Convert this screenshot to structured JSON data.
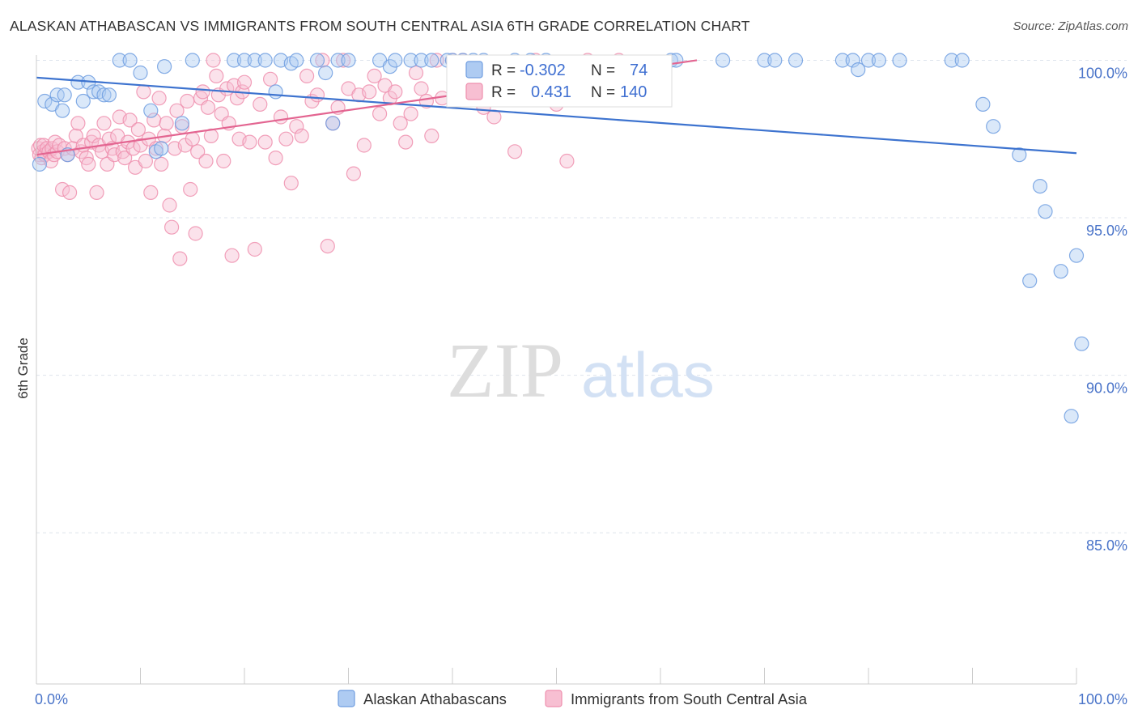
{
  "header": {
    "title": "ALASKAN ATHABASCAN VS IMMIGRANTS FROM SOUTH CENTRAL ASIA 6TH GRADE CORRELATION CHART",
    "source": "Source: ZipAtlas.com"
  },
  "watermark": {
    "zip": "ZIP",
    "atlas": "atlas"
  },
  "colors": {
    "blue": "#6f9de0",
    "blue_fill": "#aecbf2",
    "blue_line": "#3d73cf",
    "pink": "#ee8fae",
    "pink_fill": "#f7bfd2",
    "pink_line": "#e36591",
    "grid": "#dde3ec",
    "tick_label": "#4a74c9"
  },
  "legend": {
    "rows": [
      {
        "r_label": "R = ",
        "r_value": "-0.302",
        "n_label": "N = ",
        "n_value": "74"
      },
      {
        "r_label": "R = ",
        "r_value": "0.431",
        "n_label": "N = ",
        "n_value": "140"
      }
    ]
  },
  "chart_data": {
    "type": "scatter",
    "title": "ALASKAN ATHABASCAN VS IMMIGRANTS FROM SOUTH CENTRAL ASIA 6TH GRADE CORRELATION CHART",
    "xlabel": "",
    "ylabel": "6th Grade",
    "xlim": [
      0,
      100
    ],
    "ylim": [
      80.2,
      100.5
    ],
    "x_tick_labels": [
      "0.0%",
      "100.0%"
    ],
    "y_ticks": [
      100,
      95,
      90,
      85
    ],
    "y_tick_labels": [
      "100.0%",
      "95.0%",
      "90.0%",
      "85.0%"
    ],
    "grid": true,
    "legend_position": "top-center",
    "series": [
      {
        "name": "Alaskan Athabascans",
        "color": "#6f9de0",
        "r": -0.302,
        "n": 74,
        "trend": {
          "x": [
            0,
            100
          ],
          "y": [
            99.45,
            97.05
          ]
        },
        "x": [
          0.3,
          0.8,
          1.5,
          2.0,
          2.5,
          2.7,
          3.0,
          4.0,
          4.5,
          5.0,
          5.5,
          6.0,
          6.5,
          7.0,
          8.0,
          9.0,
          10.0,
          11.0,
          11.5,
          12.0,
          12.3,
          14.0,
          15.0,
          19.0,
          20.0,
          21.0,
          22.0,
          23.0,
          23.5,
          24.5,
          25.0,
          27.0,
          27.8,
          28.5,
          29.0,
          30.0,
          33.0,
          34.0,
          34.5,
          36.0,
          37.0,
          38.0,
          39.5,
          40.0,
          41.0,
          42.0,
          43.0,
          46.0,
          47.5,
          49.0,
          61.0,
          61.5,
          66.0,
          70.0,
          71.0,
          73.0,
          77.5,
          78.5,
          79.0,
          80.0,
          81.0,
          83.0,
          88.0,
          89.0,
          91.0,
          92.0,
          94.5,
          95.5,
          96.5,
          97.0,
          98.5,
          99.5,
          100.0,
          100.5
        ],
        "y": [
          96.7,
          98.7,
          98.6,
          98.9,
          98.4,
          98.9,
          97.0,
          99.3,
          98.7,
          99.3,
          99.0,
          99.0,
          98.9,
          98.9,
          100.0,
          100.0,
          99.6,
          98.4,
          97.1,
          97.2,
          99.8,
          98.0,
          100.0,
          100.0,
          100.0,
          100.0,
          100.0,
          99.0,
          100.0,
          99.9,
          100.0,
          100.0,
          99.6,
          98.0,
          100.0,
          100.0,
          100.0,
          99.8,
          100.0,
          100.0,
          100.0,
          100.0,
          100.0,
          100.0,
          100.0,
          100.0,
          100.0,
          100.0,
          100.0,
          100.0,
          100.0,
          100.0,
          100.0,
          100.0,
          100.0,
          100.0,
          100.0,
          100.0,
          99.7,
          100.0,
          100.0,
          100.0,
          100.0,
          100.0,
          98.6,
          97.9,
          97.0,
          93.0,
          96.0,
          95.2,
          93.3,
          88.7,
          93.8,
          91.0
        ]
      },
      {
        "name": "Immigrants from South Central Asia",
        "color": "#ee8fae",
        "r": 0.431,
        "n": 140,
        "trend": {
          "x": [
            0,
            63.5
          ],
          "y": [
            97.0,
            100.0
          ]
        },
        "x": [
          0.2,
          0.3,
          0.4,
          0.5,
          0.6,
          0.7,
          0.8,
          1.0,
          1.2,
          1.4,
          1.5,
          1.7,
          1.8,
          2.0,
          2.2,
          2.5,
          2.7,
          3.0,
          3.2,
          3.5,
          3.8,
          4.0,
          4.3,
          4.5,
          4.8,
          5.0,
          5.3,
          5.5,
          5.8,
          6.0,
          6.3,
          6.5,
          6.8,
          7.0,
          7.3,
          7.5,
          7.8,
          8.0,
          8.3,
          8.5,
          8.8,
          9.0,
          9.3,
          9.5,
          9.8,
          10.0,
          10.3,
          10.5,
          10.8,
          11.0,
          11.3,
          11.5,
          11.8,
          12.0,
          12.3,
          12.5,
          12.8,
          13.0,
          13.3,
          13.5,
          13.8,
          14.0,
          14.3,
          14.5,
          14.8,
          15.0,
          15.3,
          15.5,
          15.8,
          16.0,
          16.3,
          16.5,
          16.8,
          17.0,
          17.3,
          17.5,
          17.8,
          18.0,
          18.3,
          18.5,
          18.8,
          19.0,
          19.3,
          19.5,
          19.8,
          20.0,
          20.5,
          21.0,
          21.5,
          22.0,
          22.5,
          23.0,
          23.5,
          24.0,
          24.5,
          25.0,
          25.5,
          26.0,
          26.5,
          27.0,
          27.5,
          28.0,
          28.5,
          29.0,
          29.5,
          30.0,
          30.5,
          31.0,
          31.5,
          32.0,
          32.5,
          33.0,
          33.5,
          34.0,
          34.5,
          35.0,
          35.5,
          36.0,
          36.5,
          37.0,
          37.5,
          38.0,
          38.5,
          39.0,
          40.0,
          41.0,
          42.0,
          43.0,
          44.0,
          45.0,
          46.0,
          47.0,
          48.0,
          49.0,
          50.0,
          51.0,
          52.0,
          53.0,
          55.0,
          56.0
        ],
        "y": [
          97.2,
          97.0,
          97.3,
          96.9,
          97.1,
          97.3,
          97.0,
          97.2,
          97.1,
          96.8,
          97.2,
          97.0,
          97.4,
          97.1,
          97.3,
          95.9,
          97.2,
          97.0,
          95.8,
          97.2,
          97.6,
          98.0,
          97.1,
          97.3,
          96.9,
          96.7,
          97.4,
          97.6,
          95.8,
          97.3,
          97.1,
          98.0,
          96.7,
          97.5,
          97.2,
          97.0,
          97.6,
          98.2,
          97.1,
          96.9,
          97.4,
          98.1,
          97.2,
          96.6,
          97.8,
          97.3,
          99.0,
          96.8,
          97.5,
          95.8,
          98.1,
          97.2,
          98.8,
          96.7,
          97.6,
          98.0,
          95.4,
          94.7,
          97.2,
          98.4,
          93.7,
          97.9,
          97.3,
          98.7,
          95.9,
          97.5,
          94.5,
          97.1,
          98.8,
          99.0,
          96.8,
          98.5,
          97.6,
          100.0,
          99.5,
          98.9,
          98.3,
          96.8,
          99.1,
          98.0,
          93.8,
          99.2,
          98.8,
          97.5,
          99.0,
          99.3,
          97.4,
          94.0,
          98.6,
          97.4,
          99.4,
          96.9,
          98.2,
          97.5,
          96.1,
          97.9,
          97.6,
          99.5,
          98.7,
          98.9,
          100.0,
          94.1,
          98.0,
          98.5,
          100.0,
          99.1,
          96.4,
          98.9,
          97.3,
          99.0,
          99.5,
          98.3,
          99.2,
          98.8,
          99.0,
          98.0,
          97.4,
          98.3,
          99.6,
          99.1,
          98.7,
          97.6,
          100.0,
          98.8,
          100.0,
          100.0,
          99.0,
          98.5,
          98.2,
          99.3,
          97.1,
          98.9,
          100.0,
          99.1,
          98.6,
          96.8,
          99.7,
          100.0,
          99.2,
          100.0
        ]
      }
    ]
  },
  "bottom_legend": {
    "items": [
      {
        "label": "Alaskan Athabascans"
      },
      {
        "label": "Immigrants from South Central Asia"
      }
    ]
  }
}
